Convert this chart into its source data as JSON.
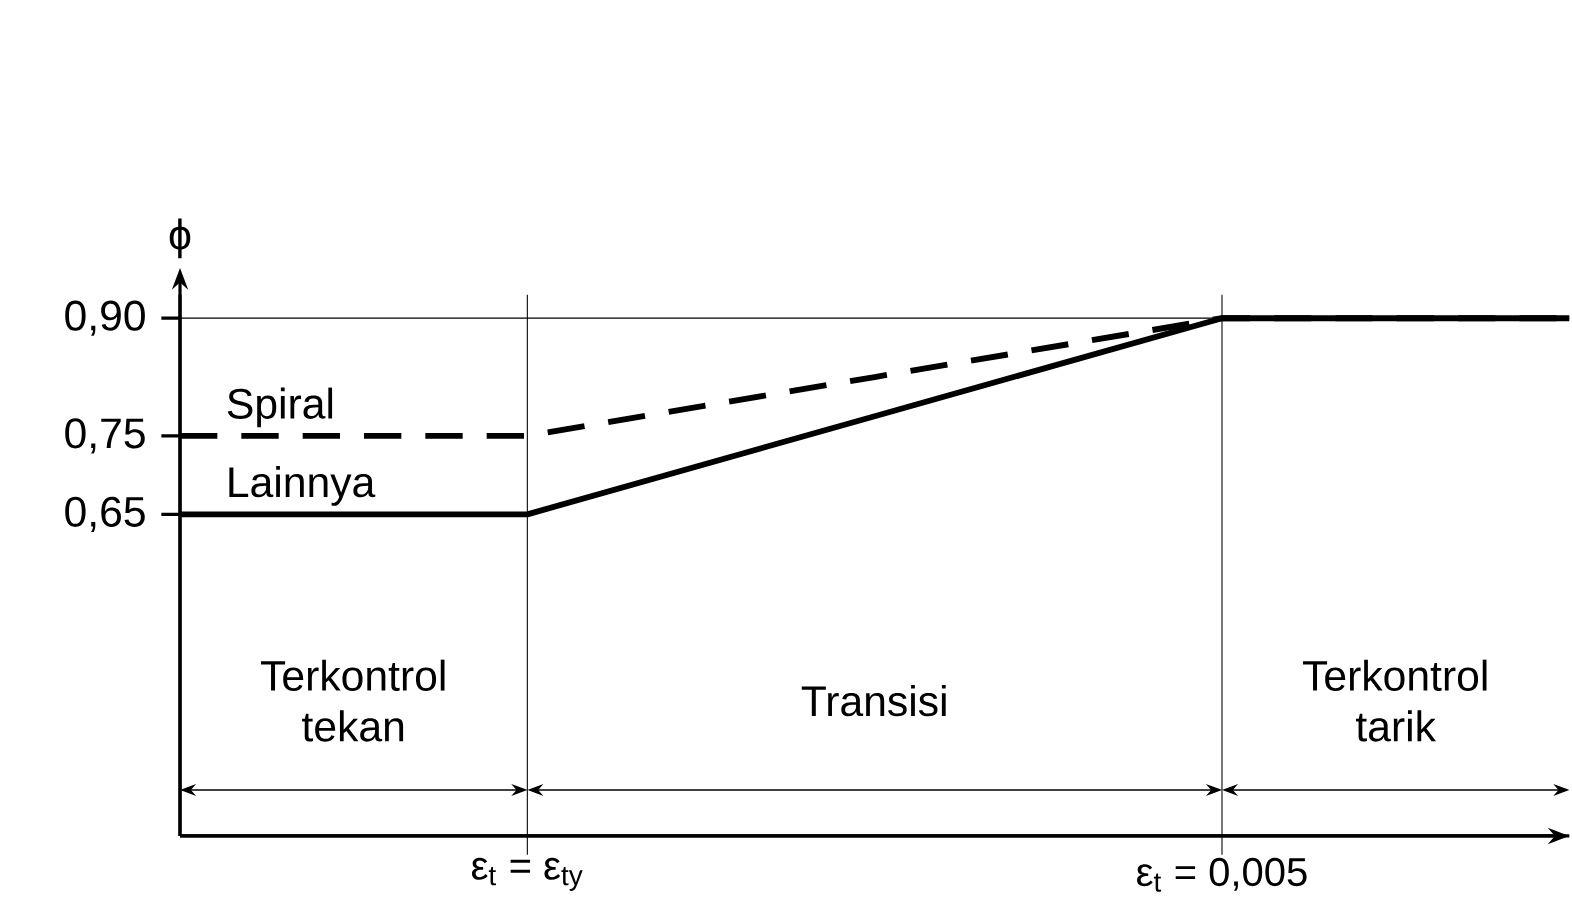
{
  "chart_data": {
    "type": "line",
    "ylabel": "ϕ",
    "categories": [
      null,
      "ε$_{t}$ = ε$_{ty}$",
      null,
      "ε$_{t}$ = 0,005",
      null
    ],
    "series": [
      {
        "name": "Spiral",
        "color": "#000000",
        "line_style": "dashed",
        "values": [
          0.75,
          0.75,
          0.825,
          0.9,
          0.9
        ]
      },
      {
        "name": "Lainnya",
        "color": "#000000",
        "line_style": "solid",
        "values": [
          0.65,
          0.65,
          0.775,
          0.9,
          0.9
        ]
      }
    ],
    "ylim": [
      0.24,
      0.93
    ],
    "yticks": [
      {
        "value": 0.65,
        "label": "0,65"
      },
      {
        "value": 0.75,
        "label": "0,75"
      },
      {
        "value": 0.9,
        "label": "0,90"
      }
    ],
    "grid": "x",
    "ref_lines": [
      {
        "axis": "y",
        "value": 0.9,
        "color": "#000000"
      }
    ],
    "annotations": [
      "Terkontrol tekan",
      "Transisi",
      "Terkontrol tarik"
    ]
  }
}
